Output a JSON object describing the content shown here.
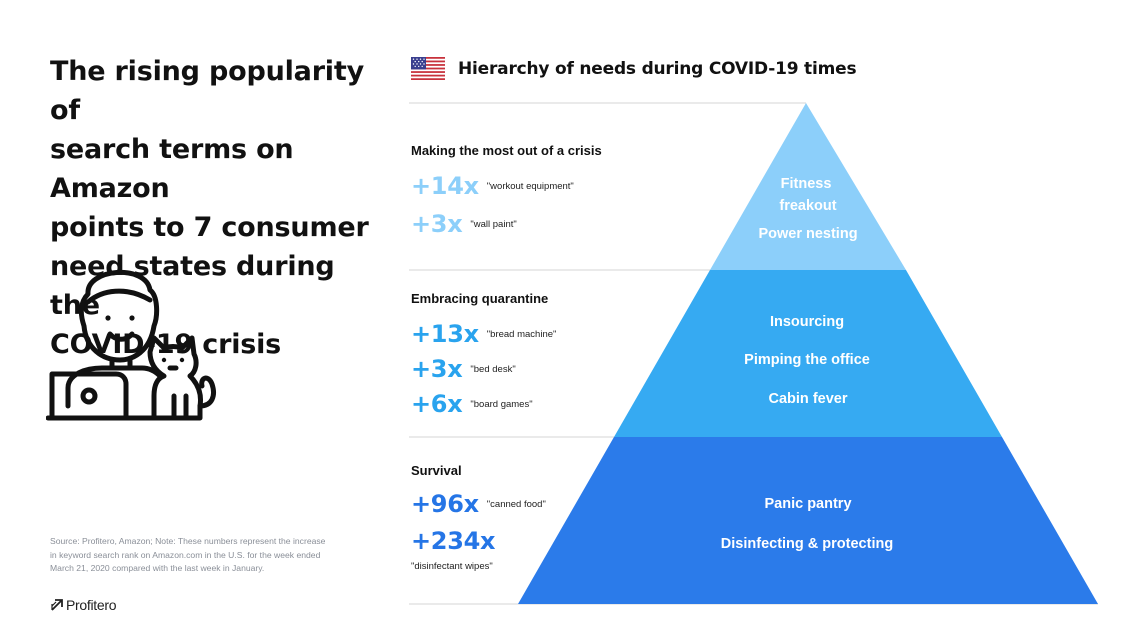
{
  "headline": {
    "lines": [
      "The rising popularity of",
      "search terms on Amazon",
      "points to 7 consumer",
      "need states during the",
      "COVID-19 crisis"
    ]
  },
  "source_note": {
    "lines": [
      "Source: Profitero, Amazon; Note: These numbers represent the increase",
      "in keyword search rank on Amazon.com in the U.S. for the week ended",
      "March 21, 2020 compared with the last week in January."
    ]
  },
  "logo": {
    "text": "Profitero"
  },
  "chart_title": "Hierarchy of needs during COVID-19 times",
  "colors": {
    "top": "#8ccffa",
    "middle": "#36aaf2",
    "bottom": "#2b7bea",
    "top_text": "#8ccffa",
    "middle_text": "#29a3ee",
    "bottom_text": "#2575e6"
  },
  "sections": [
    {
      "title": "Making the most out of a crisis",
      "stats": [
        {
          "multiplier": "+14x",
          "term": "\"workout equipment\""
        },
        {
          "multiplier": "+3x",
          "term": "\"wall paint\""
        }
      ],
      "tiers": [
        "Fitness",
        "freakout",
        "Power nesting"
      ]
    },
    {
      "title": "Embracing quarantine",
      "stats": [
        {
          "multiplier": "+13x",
          "term": "\"bread machine\""
        },
        {
          "multiplier": "+3x",
          "term": "\"bed desk\""
        },
        {
          "multiplier": "+6x",
          "term": "\"board games\""
        }
      ],
      "tiers": [
        "Insourcing",
        "Pimping the office",
        "Cabin fever"
      ]
    },
    {
      "title": "Survival",
      "stats": [
        {
          "multiplier": "+96x",
          "term": "\"canned food\""
        },
        {
          "multiplier": "+234x",
          "term": "\"disinfectant wipes\""
        }
      ],
      "tiers": [
        "Panic pantry",
        "Disinfecting & protecting"
      ]
    }
  ]
}
